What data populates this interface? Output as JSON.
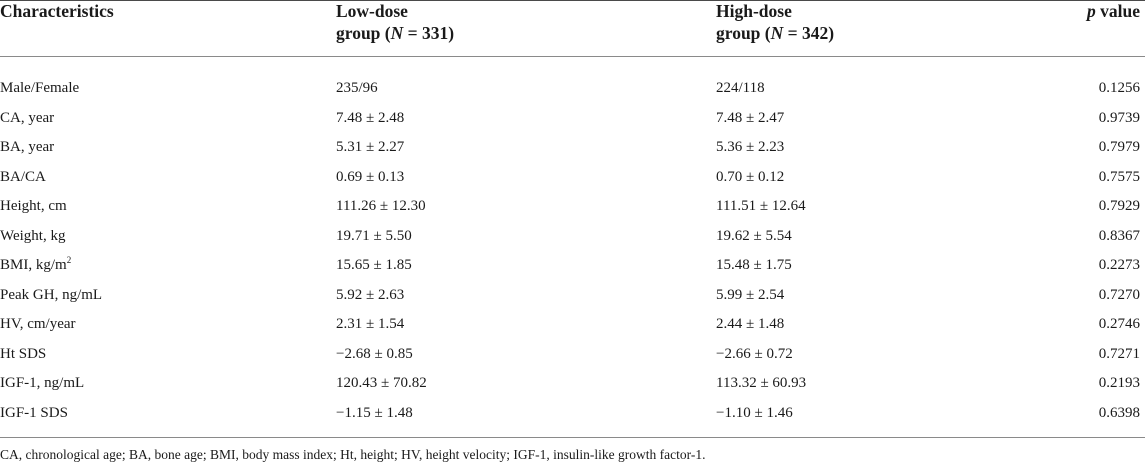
{
  "table": {
    "headers": {
      "characteristics": "Characteristics",
      "low": {
        "line1": "Low-dose",
        "line2_pre": "group (",
        "n_symbol": "N",
        "line2_post": " = 331)"
      },
      "high": {
        "line1": "High-dose",
        "line2_pre": "group (",
        "n_symbol": "N",
        "line2_post": " = 342)"
      },
      "p": {
        "symbol": "p",
        "rest": " value"
      }
    },
    "rows": [
      {
        "label": "Male/Female",
        "low": "235/96",
        "high": "224/118",
        "p": "0.1256"
      },
      {
        "label": "CA, year",
        "low": "7.48 ± 2.48",
        "high": "7.48 ± 2.47",
        "p": "0.9739"
      },
      {
        "label": "BA, year",
        "low": "5.31 ± 2.27",
        "high": "5.36 ± 2.23",
        "p": "0.7979"
      },
      {
        "label": "BA/CA",
        "low": "0.69 ± 0.13",
        "high": "0.70 ± 0.12",
        "p": "0.7575"
      },
      {
        "label": "Height, cm",
        "low": "111.26 ± 12.30",
        "high": "111.51 ± 12.64",
        "p": "0.7929"
      },
      {
        "label": "Weight, kg",
        "low": "19.71 ± 5.50",
        "high": "19.62 ± 5.54",
        "p": "0.8367"
      },
      {
        "label": "BMI, kg/m",
        "label_sup": "2",
        "low": "15.65 ± 1.85",
        "high": "15.48 ± 1.75",
        "p": "0.2273"
      },
      {
        "label": "Peak GH, ng/mL",
        "low": "5.92 ± 2.63",
        "high": "5.99 ± 2.54",
        "p": "0.7270"
      },
      {
        "label": "HV, cm/year",
        "low": "2.31 ± 1.54",
        "high": "2.44 ± 1.48",
        "p": "0.2746"
      },
      {
        "label": "Ht SDS",
        "low": "−2.68 ± 0.85",
        "high": "−2.66 ± 0.72",
        "p": "0.7271"
      },
      {
        "label": "IGF-1, ng/mL",
        "low": "120.43 ± 70.82",
        "high": "113.32 ± 60.93",
        "p": "0.2193"
      },
      {
        "label": "IGF-1 SDS",
        "low": "−1.15 ± 1.48",
        "high": "−1.10 ± 1.46",
        "p": "0.6398"
      }
    ],
    "footnote": "CA, chronological age; BA, bone age; BMI, body mass index; Ht, height; HV, height velocity; IGF-1, insulin-like growth factor-1."
  }
}
